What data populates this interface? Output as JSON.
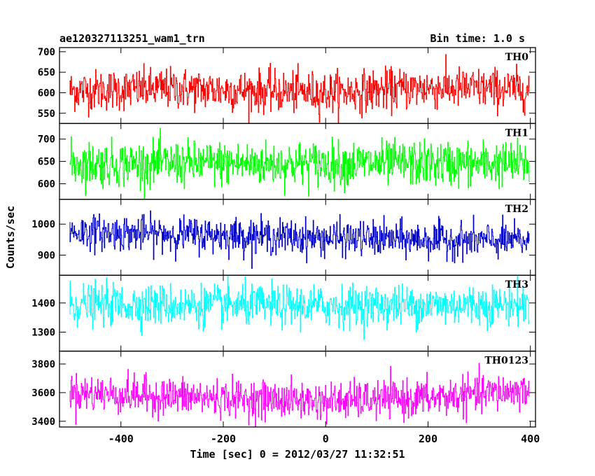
{
  "header": {
    "title": "ae120327113251_wam1_trn",
    "bin_time": "Bin time: 1.0 s"
  },
  "chart_data": {
    "type": "line",
    "xlabel": "Time [sec] 0 = 2012/03/27 11:32:51",
    "ylabel": "Counts/sec",
    "xlim": [
      -520,
      410
    ],
    "x_ticks": [
      -400,
      -200,
      0,
      200,
      400
    ],
    "x_range": [
      -500,
      398
    ],
    "x_step": 1,
    "panels": [
      {
        "name": "TH0",
        "color": "#ff0000",
        "ylim": [
          525,
          710
        ],
        "yticks": [
          550,
          600,
          650,
          700
        ],
        "mean": 605,
        "sigma": 25,
        "trend": [
          [
            -500,
            605
          ],
          [
            -300,
            610
          ],
          [
            0,
            600
          ],
          [
            200,
            612
          ],
          [
            400,
            608
          ]
        ]
      },
      {
        "name": "TH1",
        "color": "#00ff00",
        "ylim": [
          565,
          735
        ],
        "yticks": [
          600,
          650,
          700
        ],
        "mean": 645,
        "sigma": 25,
        "trend": [
          [
            -500,
            645
          ],
          [
            0,
            645
          ],
          [
            400,
            645
          ]
        ]
      },
      {
        "name": "TH2",
        "color": "#0000cc",
        "ylim": [
          835,
          1080
        ],
        "yticks": [
          900,
          1000
        ],
        "mean": 960,
        "sigma": 28,
        "trend": [
          [
            -500,
            975
          ],
          [
            -200,
            965
          ],
          [
            0,
            955
          ],
          [
            400,
            945
          ]
        ]
      },
      {
        "name": "TH3",
        "color": "#00ffff",
        "ylim": [
          1235,
          1495
        ],
        "yticks": [
          1300,
          1400
        ],
        "mean": 1390,
        "sigma": 35,
        "trend": [
          [
            -500,
            1395
          ],
          [
            0,
            1390
          ],
          [
            400,
            1395
          ]
        ]
      },
      {
        "name": "TH0123",
        "color": "#ff00ff",
        "ylim": [
          3360,
          3890
        ],
        "yticks": [
          3400,
          3600,
          3800
        ],
        "mean": 3570,
        "sigma": 65,
        "trend": [
          [
            -500,
            3600
          ],
          [
            -200,
            3560
          ],
          [
            0,
            3540
          ],
          [
            200,
            3560
          ],
          [
            400,
            3620
          ]
        ]
      }
    ]
  }
}
